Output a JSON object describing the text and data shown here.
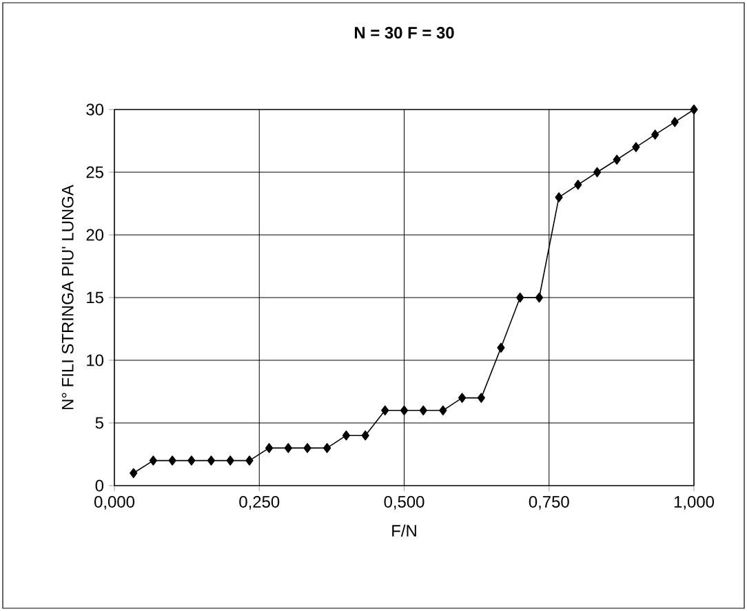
{
  "chart_data": {
    "type": "line",
    "title": "N = 30   F = 30",
    "xlabel": "F/N",
    "ylabel": "N° FILI STRINGA PIU' LUNGA",
    "x": [
      0.033,
      0.067,
      0.1,
      0.133,
      0.167,
      0.2,
      0.233,
      0.267,
      0.3,
      0.333,
      0.367,
      0.4,
      0.433,
      0.467,
      0.5,
      0.533,
      0.567,
      0.6,
      0.633,
      0.667,
      0.7,
      0.733,
      0.767,
      0.8,
      0.833,
      0.867,
      0.9,
      0.933,
      0.967,
      1.0
    ],
    "values": [
      1,
      2,
      2,
      2,
      2,
      2,
      2,
      3,
      3,
      3,
      3,
      4,
      4,
      6,
      6,
      6,
      6,
      7,
      7,
      11,
      15,
      15,
      23,
      24,
      25,
      26,
      27,
      28,
      29,
      30
    ],
    "color": "#000000",
    "marker": "diamond",
    "line_style": "solid",
    "xlim": [
      0,
      1
    ],
    "ylim": [
      0,
      30
    ],
    "xticks": [
      {
        "value": 0,
        "label": "0,000"
      },
      {
        "value": 0.25,
        "label": "0,250"
      },
      {
        "value": 0.5,
        "label": "0,500"
      },
      {
        "value": 0.75,
        "label": "0,750"
      },
      {
        "value": 1,
        "label": "1,000"
      }
    ],
    "yticks": [
      0,
      5,
      10,
      15,
      20,
      25,
      30
    ],
    "grid": true
  }
}
